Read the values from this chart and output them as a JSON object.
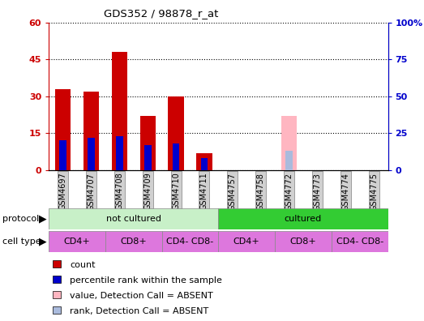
{
  "title": "GDS352 / 98878_r_at",
  "samples": [
    "GSM4697",
    "GSM4707",
    "GSM4708",
    "GSM4709",
    "GSM4710",
    "GSM4711",
    "GSM4757",
    "GSM4758",
    "GSM4772",
    "GSM4773",
    "GSM4774",
    "GSM4775"
  ],
  "count_values": [
    33,
    32,
    48,
    22,
    30,
    7,
    0,
    0,
    0,
    0,
    0,
    0
  ],
  "rank_values": [
    20,
    22,
    23,
    17,
    18,
    8,
    0,
    0,
    13,
    0,
    0,
    0
  ],
  "absent_count": [
    0,
    0,
    0,
    0,
    0,
    0,
    0,
    0,
    22,
    0,
    0,
    0
  ],
  "absent_rank": [
    0,
    0,
    0,
    0,
    0,
    0,
    0,
    0,
    13,
    0,
    0,
    0
  ],
  "ylim_left": [
    0,
    60
  ],
  "ylim_right": [
    0,
    100
  ],
  "yticks_left": [
    0,
    15,
    30,
    45,
    60
  ],
  "ytick_labels_left": [
    "0",
    "15",
    "30",
    "45",
    "60"
  ],
  "yticks_right": [
    0,
    25,
    50,
    75,
    100
  ],
  "ytick_labels_right": [
    "0",
    "25",
    "50",
    "75",
    "100%"
  ],
  "bar_color": "#cc0000",
  "rank_color": "#0000cc",
  "absent_bar_color": "#ffb6c1",
  "absent_rank_color": "#aabbdd",
  "protocol_groups": [
    {
      "label": "not cultured",
      "start": 0,
      "end": 5,
      "color": "#c8f0c8"
    },
    {
      "label": "cultured",
      "start": 6,
      "end": 11,
      "color": "#33cc33"
    }
  ],
  "cell_type_groups": [
    {
      "label": "CD4+",
      "start": 0,
      "end": 1,
      "color": "#dd77dd"
    },
    {
      "label": "CD8+",
      "start": 2,
      "end": 3,
      "color": "#dd77dd"
    },
    {
      "label": "CD4- CD8-",
      "start": 4,
      "end": 5,
      "color": "#dd77dd"
    },
    {
      "label": "CD4+",
      "start": 6,
      "end": 7,
      "color": "#dd77dd"
    },
    {
      "label": "CD8+",
      "start": 8,
      "end": 9,
      "color": "#dd77dd"
    },
    {
      "label": "CD4- CD8-",
      "start": 10,
      "end": 11,
      "color": "#dd77dd"
    }
  ],
  "legend_items": [
    {
      "label": "count",
      "color": "#cc0000"
    },
    {
      "label": "percentile rank within the sample",
      "color": "#0000cc"
    },
    {
      "label": "value, Detection Call = ABSENT",
      "color": "#ffb6c1"
    },
    {
      "label": "rank, Detection Call = ABSENT",
      "color": "#aabbdd"
    }
  ],
  "bar_width": 0.55,
  "rank_bar_width": 0.25
}
